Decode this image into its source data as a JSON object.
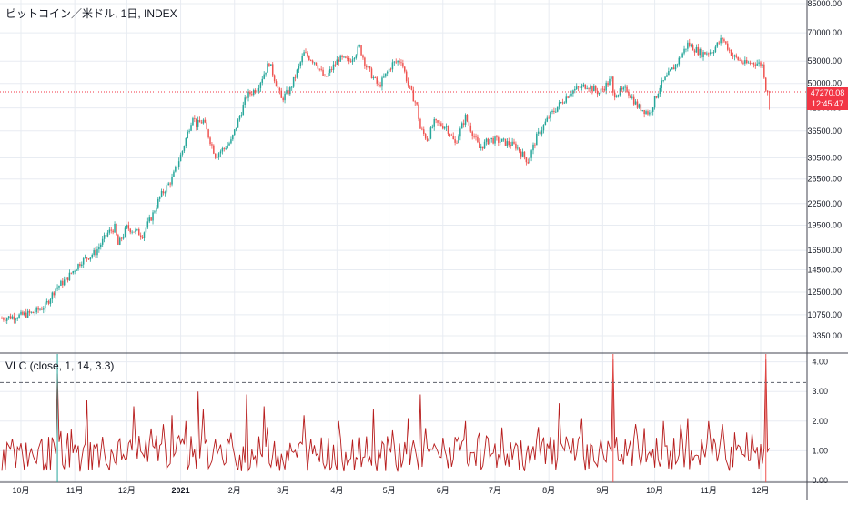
{
  "title": "ビットコイン／米ドル, 1日, INDEX",
  "indicator_title": "VLC (close, 1, 14, 3.3)",
  "current_price": "47270.08",
  "countdown": "12:45:47",
  "colors": {
    "up": "#26a69a",
    "down": "#ef5350",
    "vlc_line": "#b71c1c",
    "threshold_line": "#5d606b",
    "price_tag": "#f23645",
    "grid": "#e8ecf2"
  },
  "chart_data": [
    {
      "type": "candlestick",
      "scale": "log",
      "ylim": [
        8500,
        85000
      ],
      "x_ticks": [
        "10月",
        "11月",
        "12月",
        "2021",
        "2月",
        "3月",
        "4月",
        "5月",
        "6月",
        "7月",
        "8月",
        "9月",
        "10月",
        "11月",
        "12月"
      ],
      "y_ticks": [
        9350,
        10750,
        12500,
        14500,
        16500,
        19500,
        22500,
        26500,
        30500,
        36500,
        42500,
        50000,
        58000,
        70000,
        85000
      ],
      "y_tick_labels": [
        "9350.00",
        "10750.00",
        "12500.00",
        "14500.00",
        "16500.00",
        "19500.00",
        "22500.00",
        "26500.00",
        "30500.00",
        "36500.00",
        "42500.00",
        "50000.00",
        "58000.00",
        "70000.00",
        "85000.00"
      ],
      "close_path": [
        {
          "d": "2020-09-20",
          "c": 10500
        },
        {
          "d": "2020-10-01",
          "c": 10700
        },
        {
          "d": "2020-10-08",
          "c": 10900
        },
        {
          "d": "2020-10-15",
          "c": 11400
        },
        {
          "d": "2020-10-21",
          "c": 12800
        },
        {
          "d": "2020-10-27",
          "c": 13600
        },
        {
          "d": "2020-11-05",
          "c": 15400
        },
        {
          "d": "2020-11-13",
          "c": 16300
        },
        {
          "d": "2020-11-20",
          "c": 18500
        },
        {
          "d": "2020-11-24",
          "c": 19200
        },
        {
          "d": "2020-11-26",
          "c": 17100
        },
        {
          "d": "2020-12-01",
          "c": 19200
        },
        {
          "d": "2020-12-10",
          "c": 18300
        },
        {
          "d": "2020-12-16",
          "c": 21000
        },
        {
          "d": "2020-12-20",
          "c": 23500
        },
        {
          "d": "2020-12-27",
          "c": 26500
        },
        {
          "d": "2021-01-02",
          "c": 32000
        },
        {
          "d": "2021-01-08",
          "c": 40500
        },
        {
          "d": "2021-01-10",
          "c": 38000
        },
        {
          "d": "2021-01-14",
          "c": 39000
        },
        {
          "d": "2021-01-21",
          "c": 31000
        },
        {
          "d": "2021-01-26",
          "c": 32500
        },
        {
          "d": "2021-01-30",
          "c": 34000
        },
        {
          "d": "2021-02-08",
          "c": 46000
        },
        {
          "d": "2021-02-14",
          "c": 48500
        },
        {
          "d": "2021-02-21",
          "c": 57500
        },
        {
          "d": "2021-02-28",
          "c": 45000
        },
        {
          "d": "2021-03-05",
          "c": 48000
        },
        {
          "d": "2021-03-13",
          "c": 61000
        },
        {
          "d": "2021-03-20",
          "c": 57500
        },
        {
          "d": "2021-03-25",
          "c": 51500
        },
        {
          "d": "2021-04-02",
          "c": 59000
        },
        {
          "d": "2021-04-08",
          "c": 58000
        },
        {
          "d": "2021-04-14",
          "c": 63500
        },
        {
          "d": "2021-04-18",
          "c": 56000
        },
        {
          "d": "2021-04-25",
          "c": 49000
        },
        {
          "d": "2021-05-03",
          "c": 57000
        },
        {
          "d": "2021-05-08",
          "c": 58500
        },
        {
          "d": "2021-05-12",
          "c": 49500
        },
        {
          "d": "2021-05-17",
          "c": 43000
        },
        {
          "d": "2021-05-19",
          "c": 37000
        },
        {
          "d": "2021-05-23",
          "c": 34500
        },
        {
          "d": "2021-05-27",
          "c": 38500
        },
        {
          "d": "2021-06-03",
          "c": 37500
        },
        {
          "d": "2021-06-08",
          "c": 33500
        },
        {
          "d": "2021-06-14",
          "c": 40000
        },
        {
          "d": "2021-06-22",
          "c": 32500
        },
        {
          "d": "2021-06-28",
          "c": 34500
        },
        {
          "d": "2021-07-05",
          "c": 34000
        },
        {
          "d": "2021-07-13",
          "c": 33000
        },
        {
          "d": "2021-07-20",
          "c": 29800
        },
        {
          "d": "2021-07-25",
          "c": 35000
        },
        {
          "d": "2021-08-01",
          "c": 40000
        },
        {
          "d": "2021-08-08",
          "c": 44000
        },
        {
          "d": "2021-08-14",
          "c": 47500
        },
        {
          "d": "2021-08-23",
          "c": 49500
        },
        {
          "d": "2021-08-30",
          "c": 47000
        },
        {
          "d": "2021-09-06",
          "c": 51500
        },
        {
          "d": "2021-09-07",
          "c": 46500
        },
        {
          "d": "2021-09-15",
          "c": 48000
        },
        {
          "d": "2021-09-21",
          "c": 43000
        },
        {
          "d": "2021-09-28",
          "c": 41000
        },
        {
          "d": "2021-10-04",
          "c": 49000
        },
        {
          "d": "2021-10-14",
          "c": 57500
        },
        {
          "d": "2021-10-20",
          "c": 65000
        },
        {
          "d": "2021-10-28",
          "c": 61000
        },
        {
          "d": "2021-11-03",
          "c": 62000
        },
        {
          "d": "2021-11-09",
          "c": 67500
        },
        {
          "d": "2021-11-15",
          "c": 60000
        },
        {
          "d": "2021-11-22",
          "c": 57000
        },
        {
          "d": "2021-11-28",
          "c": 57500
        },
        {
          "d": "2021-12-02",
          "c": 56500
        },
        {
          "d": "2021-12-03",
          "c": 53000
        },
        {
          "d": "2021-12-04",
          "c": 48500
        },
        {
          "d": "2021-12-05",
          "c": 48000
        },
        {
          "d": "2021-12-06",
          "c": 47270.08
        }
      ]
    },
    {
      "type": "line",
      "name": "VLC (close, 1, 14, 3.3)",
      "ylim": [
        0,
        4.3
      ],
      "y_tick_labels": [
        "0.00",
        "1.00",
        "2.00",
        "3.00",
        "4.00"
      ],
      "threshold": 3.3,
      "spikes": [
        {
          "d": "2020-10-22",
          "v": 3.6
        },
        {
          "d": "2020-11-08",
          "v": 2.7
        },
        {
          "d": "2020-12-05",
          "v": 2.5
        },
        {
          "d": "2020-12-27",
          "v": 2.2
        },
        {
          "d": "2021-01-04",
          "v": 2.0
        },
        {
          "d": "2021-01-11",
          "v": 3.0
        },
        {
          "d": "2021-01-14",
          "v": 2.4
        },
        {
          "d": "2021-02-08",
          "v": 2.9
        },
        {
          "d": "2021-02-18",
          "v": 2.5
        },
        {
          "d": "2021-03-13",
          "v": 2.2
        },
        {
          "d": "2021-04-02",
          "v": 2.0
        },
        {
          "d": "2021-04-22",
          "v": 2.4
        },
        {
          "d": "2021-05-12",
          "v": 2.1
        },
        {
          "d": "2021-05-19",
          "v": 2.9
        },
        {
          "d": "2021-06-14",
          "v": 2.0
        },
        {
          "d": "2021-06-22",
          "v": 1.6
        },
        {
          "d": "2021-07-26",
          "v": 1.8
        },
        {
          "d": "2021-08-07",
          "v": 2.6
        },
        {
          "d": "2021-08-20",
          "v": 2.1
        },
        {
          "d": "2021-09-07",
          "v": 4.1
        },
        {
          "d": "2021-09-20",
          "v": 1.9
        },
        {
          "d": "2021-10-06",
          "v": 2.0
        },
        {
          "d": "2021-10-20",
          "v": 2.1
        },
        {
          "d": "2021-11-01",
          "v": 2.0
        },
        {
          "d": "2021-11-09",
          "v": 1.9
        },
        {
          "d": "2021-11-26",
          "v": 1.6
        },
        {
          "d": "2021-12-04",
          "v": 4.1
        }
      ]
    }
  ]
}
